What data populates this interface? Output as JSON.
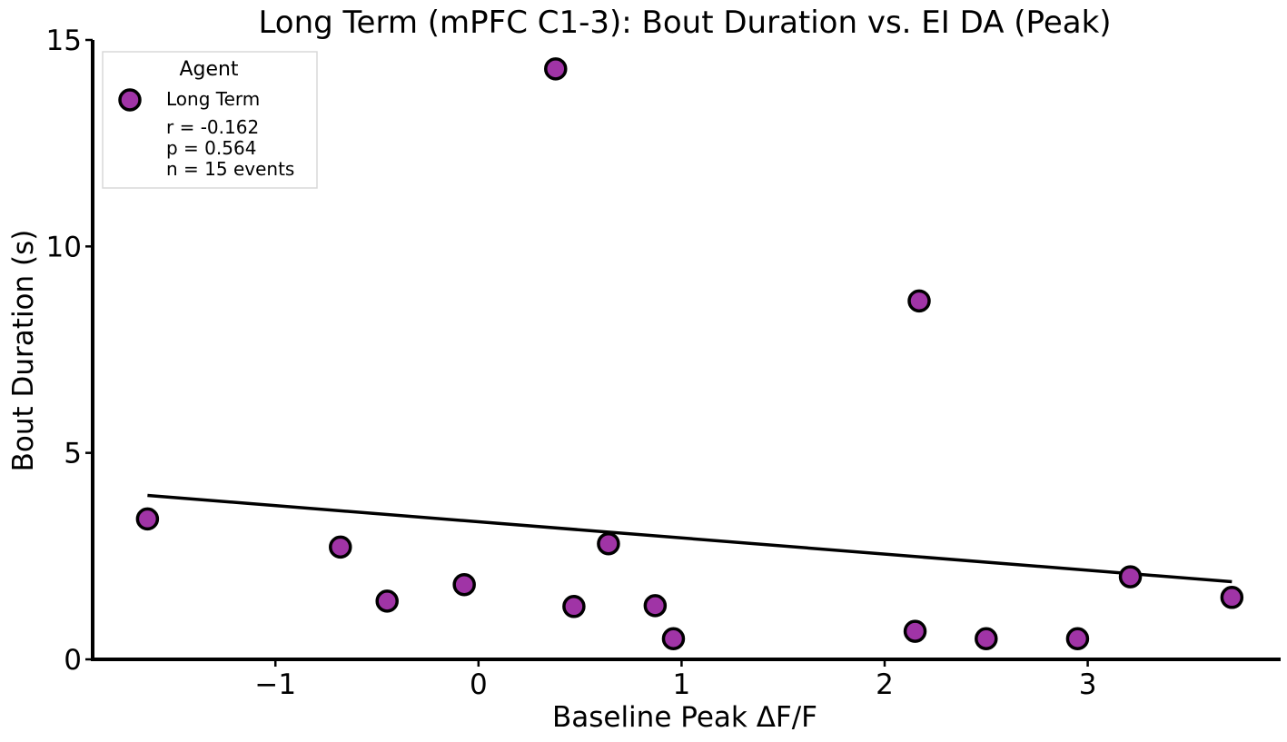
{
  "chart_data": {
    "type": "scatter",
    "title": "Long Term (mPFC C1-3): Bout Duration vs. EI DA (Peak)",
    "xlabel": "Baseline Peak ΔF/F",
    "ylabel": "Bout Duration (s)",
    "xlim": [
      -1.9,
      3.95
    ],
    "ylim": [
      0,
      15
    ],
    "xticks": [
      -1,
      0,
      1,
      2,
      3
    ],
    "xtick_labels": [
      "−1",
      "0",
      "1",
      "2",
      "3"
    ],
    "yticks": [
      0,
      5,
      10,
      15
    ],
    "ytick_labels": [
      "0",
      "5",
      "10",
      "15"
    ],
    "grid": false,
    "legend_placement": "top-left",
    "series": [
      {
        "name": "Long Term",
        "color": "#a034a6",
        "edge_color": "#000000",
        "points": [
          {
            "x": -1.63,
            "y": 3.4
          },
          {
            "x": -0.68,
            "y": 2.72
          },
          {
            "x": -0.45,
            "y": 1.41
          },
          {
            "x": -0.07,
            "y": 1.81
          },
          {
            "x": 0.38,
            "y": 14.3
          },
          {
            "x": 0.47,
            "y": 1.28
          },
          {
            "x": 0.64,
            "y": 2.8
          },
          {
            "x": 0.87,
            "y": 1.3
          },
          {
            "x": 0.96,
            "y": 0.5
          },
          {
            "x": 2.15,
            "y": 0.68
          },
          {
            "x": 2.17,
            "y": 8.68
          },
          {
            "x": 2.5,
            "y": 0.5
          },
          {
            "x": 2.95,
            "y": 0.5
          },
          {
            "x": 3.21,
            "y": 2.0
          },
          {
            "x": 3.71,
            "y": 1.5
          }
        ]
      }
    ],
    "fit_line": {
      "x": [
        -1.63,
        3.71
      ],
      "y": [
        3.97,
        1.88
      ],
      "color": "#000000"
    },
    "legend": {
      "title": "Agent",
      "entries": [
        "Long Term"
      ],
      "stats": [
        "r = -0.162",
        "p = 0.564",
        "n = 15 events"
      ]
    }
  }
}
